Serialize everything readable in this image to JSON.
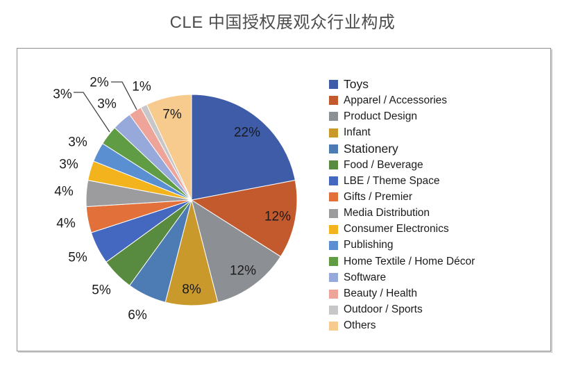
{
  "title": "CLE 中国授权展观众行业构成",
  "chart_data": {
    "type": "pie",
    "title": "CLE 中国授权展观众行业构成",
    "unit": "%",
    "start_angle_deg": 0,
    "direction": "clockwise",
    "legend_position": "right",
    "categories": [
      "Toys",
      "Apparel / Accessories",
      "Product Design",
      "Infant",
      "Stationery",
      "Food / Beverage",
      "LBE / Theme Space",
      "Gifts / Premier",
      "Media Distribution",
      "Consumer Electronics",
      "Publishing",
      "Home Textile / Home Décor",
      "Software",
      "Beauty / Health",
      "Outdoor / Sports",
      "Others"
    ],
    "values": [
      22,
      12,
      12,
      8,
      6,
      5,
      5,
      4,
      4,
      3,
      3,
      3,
      3,
      2,
      1,
      7
    ],
    "labels": [
      "22%",
      "12%",
      "12%",
      "8%",
      "6%",
      "5%",
      "5%",
      "4%",
      "4%",
      "3%",
      "3%",
      "3%",
      "3%",
      "2%",
      "1%",
      "7%"
    ],
    "colors": [
      "#3E5CA8",
      "#C25A2E",
      "#8C8F94",
      "#CA992B",
      "#4D7CB5",
      "#588A40",
      "#4467C0",
      "#E2703A",
      "#9C9C9E",
      "#F2B31C",
      "#5A8FD2",
      "#5F9C44",
      "#97A8DA",
      "#EFA49A",
      "#C7C7C9",
      "#F7CA8E"
    ]
  }
}
